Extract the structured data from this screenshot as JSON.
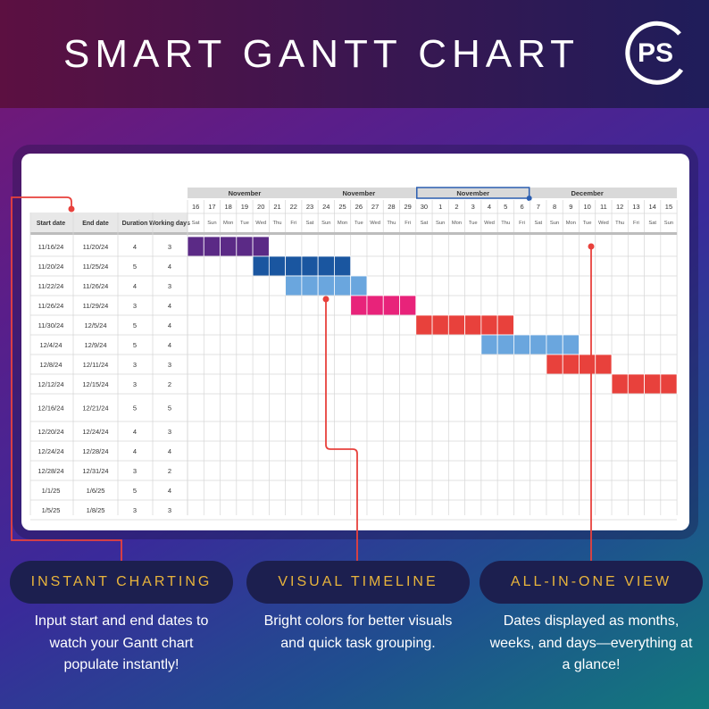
{
  "header": {
    "title": "SMART GANTT CHART",
    "logo_text": "PS"
  },
  "gantt": {
    "columns": [
      "Start date",
      "End date",
      "Duration",
      "Working days"
    ],
    "months": [
      "November",
      "November",
      "November",
      "December"
    ],
    "dates": [
      "16",
      "17",
      "18",
      "19",
      "20",
      "21",
      "22",
      "23",
      "24",
      "25",
      "26",
      "27",
      "28",
      "29",
      "30",
      "1",
      "2",
      "3",
      "4",
      "5",
      "6",
      "7",
      "8",
      "9",
      "10",
      "11",
      "12",
      "13",
      "14",
      "15"
    ],
    "weekdays": [
      "Sat",
      "Sun",
      "Mon",
      "Tue",
      "Wed",
      "Thu",
      "Fri",
      "Sat",
      "Sun",
      "Mon",
      "Tue",
      "Wed",
      "Thu",
      "Fri",
      "Sat",
      "Sun",
      "Mon",
      "Tue",
      "Wed",
      "Thu",
      "Fri",
      "Sat",
      "Sun",
      "Mon",
      "Tue",
      "Wed",
      "Thu",
      "Fri",
      "Sat",
      "Sun"
    ],
    "rows": [
      {
        "start": "11/16/24",
        "end": "11/20/24",
        "duration": "4",
        "working": "3",
        "bar_start": 0,
        "bar_len": 5,
        "color": "#5b2a86"
      },
      {
        "start": "11/20/24",
        "end": "11/25/24",
        "duration": "5",
        "working": "4",
        "bar_start": 4,
        "bar_len": 6,
        "color": "#1a56a0"
      },
      {
        "start": "11/22/24",
        "end": "11/26/24",
        "duration": "4",
        "working": "3",
        "bar_start": 6,
        "bar_len": 5,
        "color": "#6aa6de"
      },
      {
        "start": "11/26/24",
        "end": "11/29/24",
        "duration": "3",
        "working": "4",
        "bar_start": 10,
        "bar_len": 4,
        "color": "#e8237a"
      },
      {
        "start": "11/30/24",
        "end": "12/5/24",
        "duration": "5",
        "working": "4",
        "bar_start": 14,
        "bar_len": 6,
        "color": "#e8413c"
      },
      {
        "start": "12/4/24",
        "end": "12/9/24",
        "duration": "5",
        "working": "4",
        "bar_start": 18,
        "bar_len": 6,
        "color": "#6aa6de"
      },
      {
        "start": "12/8/24",
        "end": "12/11/24",
        "duration": "3",
        "working": "3",
        "bar_start": 22,
        "bar_len": 4,
        "color": "#e8413c"
      },
      {
        "start": "12/12/24",
        "end": "12/15/24",
        "duration": "3",
        "working": "2",
        "bar_start": 26,
        "bar_len": 4,
        "color": "#e8413c"
      },
      {
        "start": "12/16/24",
        "end": "12/21/24",
        "duration": "5",
        "working": "5",
        "bar_start": -1,
        "bar_len": 0,
        "color": ""
      },
      {
        "start": "12/20/24",
        "end": "12/24/24",
        "duration": "4",
        "working": "3",
        "bar_start": -1,
        "bar_len": 0,
        "color": ""
      },
      {
        "start": "12/24/24",
        "end": "12/28/24",
        "duration": "4",
        "working": "4",
        "bar_start": -1,
        "bar_len": 0,
        "color": ""
      },
      {
        "start": "12/28/24",
        "end": "12/31/24",
        "duration": "3",
        "working": "2",
        "bar_start": -1,
        "bar_len": 0,
        "color": ""
      },
      {
        "start": "1/1/25",
        "end": "1/6/25",
        "duration": "5",
        "working": "4",
        "bar_start": -1,
        "bar_len": 0,
        "color": ""
      },
      {
        "start": "1/5/25",
        "end": "1/8/25",
        "duration": "3",
        "working": "3",
        "bar_start": -1,
        "bar_len": 0,
        "color": ""
      }
    ]
  },
  "features": [
    {
      "title": "INSTANT CHARTING",
      "text_lines": [
        "Input start and end dates to",
        "watch your Gantt chart",
        "populate instantly!"
      ]
    },
    {
      "title": "VISUAL TIMELINE",
      "text_lines": [
        "Bright colors for better visuals",
        "and quick task grouping."
      ]
    },
    {
      "title": "ALL-IN-ONE VIEW",
      "text_lines": [
        "Dates displayed as months,",
        "weeks, and days—everything at",
        "a glance!"
      ]
    }
  ],
  "colors": {
    "accent_red": "#e8413c",
    "pill_bg": "#1c1f4f",
    "pill_text": "#e8b43c",
    "selection_blue": "#2a5db0"
  }
}
